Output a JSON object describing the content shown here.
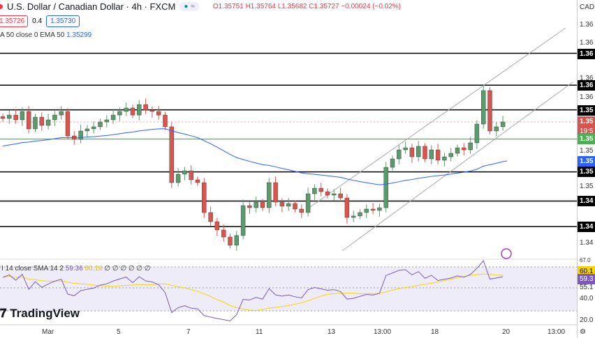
{
  "header": {
    "title": "U.S. Dollar / Canadian Dollar · 4h · FXCM",
    "status_dot_color": "#089981",
    "open": "O1.35751",
    "high": "H1.35764",
    "low": "L1.35682",
    "close": "C1.35727",
    "change": "−0.00024 (−0.02%)"
  },
  "quote": {
    "sell": "1.35726",
    "spread": "0.4",
    "buy": "1.35730"
  },
  "ema_legend": {
    "label": "A 50 close 0 EMA 50",
    "value": "1.35299"
  },
  "rsi_legend": {
    "label": "I 14 close SMA 14 2",
    "rsi": "59.36",
    "sma": "60.18",
    "extra": "∅ ∅ ∅ ∅ ∅ ∅"
  },
  "logo": "TradingView",
  "price_axis": {
    "currency": "CAD",
    "labels": [
      "1.36",
      "1.36",
      "1.36",
      "1.36",
      "1.36",
      "1.35",
      "1.35",
      "1.34"
    ],
    "tags": [
      {
        "text": "1.36",
        "kind": "level"
      },
      {
        "text": "1.36",
        "kind": "level"
      },
      {
        "text": "1.35",
        "kind": "level"
      },
      {
        "text": "1.35",
        "kind": "current"
      },
      {
        "text": "19:5",
        "kind": "countdown"
      },
      {
        "text": "1.35",
        "kind": "green"
      },
      {
        "text": "1.35",
        "kind": "ema"
      },
      {
        "text": "1.35",
        "kind": "level"
      },
      {
        "text": "1.34",
        "kind": "level"
      },
      {
        "text": "1.34",
        "kind": "level"
      }
    ],
    "rsi_labels": [
      "67.0",
      "60.1",
      "59.3",
      "55.1",
      "40.0",
      "20.0"
    ]
  },
  "time_axis": [
    "Mar",
    "5",
    "7",
    "11",
    "13",
    "13:00",
    "18",
    "20",
    "13:00"
  ],
  "colors": {
    "up": "#5b9a6b",
    "down": "#d9544d",
    "ema": "#2962ff",
    "rsi": "#7e57c2",
    "rsi_sma": "#f5d500",
    "green_level": "#4caf50"
  },
  "chart_data": {
    "type": "candlestick",
    "symbol": "USDCAD",
    "timeframe": "4h",
    "horizontal_levels": [
      1.3648,
      1.3613,
      1.3586,
      1.3486,
      1.3518,
      1.3458
    ],
    "green_level": 1.3554,
    "current_price": 1.35727,
    "ema50_last": 1.35299,
    "closes": [
      1.35765,
      1.35803,
      1.3575,
      1.35842,
      1.35651,
      1.3578,
      1.35689,
      1.3575,
      1.35803,
      1.35842,
      1.35574,
      1.35536,
      1.35628,
      1.35651,
      1.35674,
      1.35727,
      1.3575,
      1.35803,
      1.35842,
      1.3588,
      1.35803,
      1.35918,
      1.35857,
      1.35842,
      1.35803,
      1.35674,
      1.35062,
      1.35154,
      1.35192,
      1.35093,
      1.35062,
      1.34734,
      1.34634,
      1.34543,
      1.34466,
      1.34375,
      1.34482,
      1.3481,
      1.34787,
      1.34848,
      1.34787,
      1.35062,
      1.34848,
      1.34803,
      1.34833,
      1.34772,
      1.34734,
      1.3494,
      1.35001,
      1.34963,
      1.34925,
      1.3494,
      1.34894,
      1.3468,
      1.34696,
      1.34734,
      1.34772,
      1.34757,
      1.34787,
      1.3523,
      1.35322,
      1.35421,
      1.35444,
      1.35345,
      1.3546,
      1.35322,
      1.35421,
      1.35307,
      1.35345,
      1.35383,
      1.35444,
      1.35421,
      1.35498,
      1.35704,
      1.36071,
      1.35628,
      1.35674,
      1.35727
    ],
    "rsi": {
      "period": 14,
      "sma": 14,
      "last": 59.36,
      "sma_last": 60.18,
      "levels": [
        70,
        50,
        30
      ]
    }
  }
}
